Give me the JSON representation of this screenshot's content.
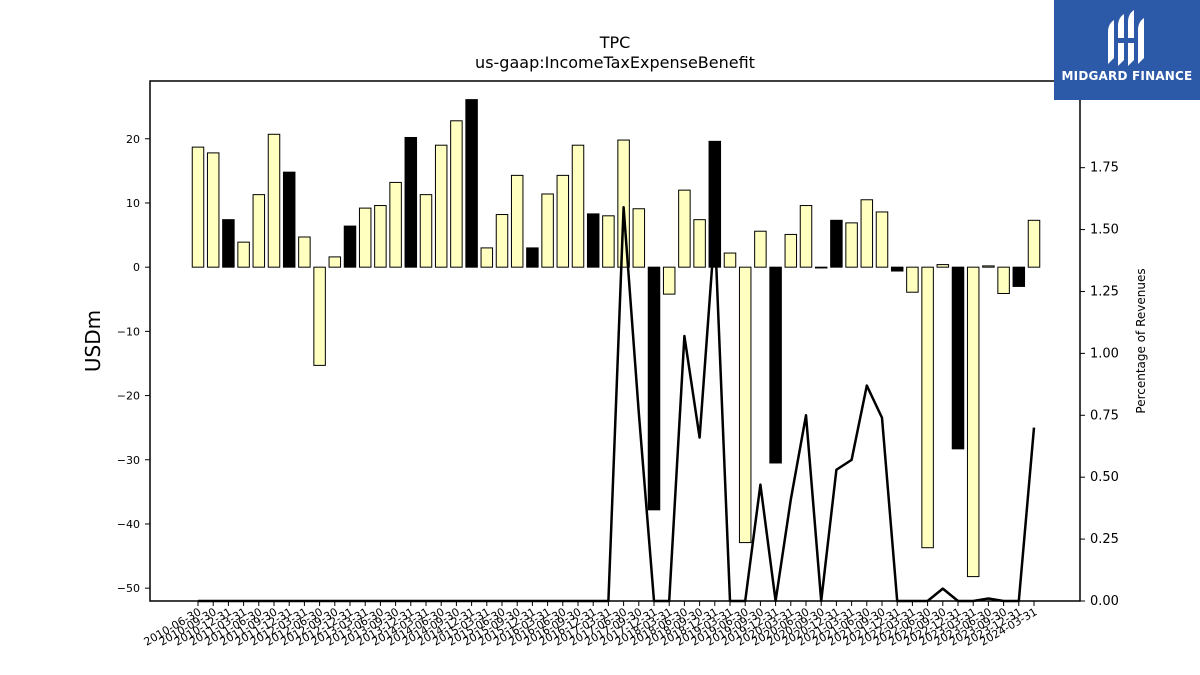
{
  "chart_data": {
    "type": "bar",
    "title": "TPC",
    "subtitle": "us-gaap:IncomeTaxExpenseBenefit",
    "ylabel": "USDm",
    "y2label": "Percentage of Revenues",
    "ylim": [
      -52,
      29
    ],
    "y2lim": [
      0,
      2.1
    ],
    "yticks": [
      -50,
      -40,
      -30,
      -20,
      -10,
      0,
      10,
      20
    ],
    "y2ticks": [
      0.0,
      0.25,
      0.5,
      0.75,
      1.0,
      1.25,
      1.5,
      1.75
    ],
    "tick_labels": [
      "2010-06-30",
      "2010-09-30",
      "2010-12-31",
      "2011-03-31",
      "2011-06-30",
      "2011-09-30",
      "2011-12-31",
      "2012-03-31",
      "2012-06-30",
      "2012-09-30",
      "2012-12-31",
      "2013-03-31",
      "2013-06-30",
      "2013-09-30",
      "2013-12-31",
      "2014-03-31",
      "2014-06-30",
      "2014-09-30",
      "2014-12-31",
      "2015-03-31",
      "2015-06-30",
      "2015-09-30",
      "2015-12-31",
      "2016-03-31",
      "2016-06-30",
      "2016-09-30",
      "2016-12-31",
      "2017-03-31",
      "2017-06-30",
      "2017-09-30",
      "2017-12-31",
      "2018-03-31",
      "2018-06-30",
      "2018-09-30",
      "2018-12-31",
      "2019-03-31",
      "2019-06-30",
      "2019-09-30",
      "2019-12-31",
      "2020-03-31",
      "2020-06-30",
      "2020-09-30",
      "2020-12-31",
      "2021-03-31",
      "2021-06-30",
      "2021-09-30",
      "2021-12-31",
      "2022-03-31",
      "2022-06-30",
      "2022-09-30",
      "2022-12-31",
      "2023-03-31",
      "2023-06-30",
      "2023-09-30",
      "2023-12-31",
      "2024-03-31"
    ],
    "values": [
      18.7,
      17.8,
      7.4,
      3.9,
      11.3,
      20.7,
      14.8,
      4.7,
      -15.3,
      1.6,
      6.4,
      9.2,
      9.6,
      13.2,
      20.2,
      11.3,
      19.0,
      22.8,
      26.1,
      3.0,
      8.2,
      14.3,
      3.0,
      11.4,
      14.3,
      19.0,
      8.3,
      8.0,
      19.8,
      9.1,
      -37.8,
      -4.2,
      12.0,
      7.4,
      19.6,
      2.2,
      -42.9,
      5.6,
      -30.5,
      5.1,
      9.6,
      0.0,
      7.3,
      6.9,
      10.5,
      8.6,
      -0.6,
      -3.9,
      -43.7,
      0.4,
      -28.3,
      -48.2,
      0.2,
      -4.1,
      -3.0,
      7.3
    ],
    "bar_colors": [
      "#ffffc0",
      "#ffffc0",
      "#000000",
      "#ffffc0",
      "#ffffc0",
      "#ffffc0",
      "#000000",
      "#ffffc0",
      "#ffffc0",
      "#ffffc0",
      "#000000",
      "#ffffc0",
      "#ffffc0",
      "#ffffc0",
      "#000000",
      "#ffffc0",
      "#ffffc0",
      "#ffffc0",
      "#000000",
      "#ffffc0",
      "#ffffc0",
      "#ffffc0",
      "#000000",
      "#ffffc0",
      "#ffffc0",
      "#ffffc0",
      "#000000",
      "#ffffc0",
      "#ffffc0",
      "#ffffc0",
      "#000000",
      "#ffffc0",
      "#ffffc0",
      "#ffffc0",
      "#000000",
      "#ffffc0",
      "#ffffc0",
      "#ffffc0",
      "#000000",
      "#ffffc0",
      "#ffffc0",
      "#ffffc0",
      "#000000",
      "#ffffc0",
      "#ffffc0",
      "#ffffc0",
      "#000000",
      "#ffffc0",
      "#ffffc0",
      "#ffffc0",
      "#000000",
      "#ffffc0",
      "#ffffc0",
      "#ffffc0",
      "#000000",
      "#ffffc0"
    ],
    "line_values": [
      0,
      0,
      0,
      0,
      0,
      0,
      0,
      0,
      0,
      0,
      0,
      0,
      0,
      0,
      0,
      0,
      0,
      0,
      0,
      0,
      0,
      0,
      0,
      0,
      0,
      0,
      0,
      0,
      1.59,
      0.76,
      0,
      0,
      1.07,
      0.66,
      1.5,
      0,
      0,
      0.47,
      0,
      0.41,
      0.75,
      0,
      0.53,
      0.57,
      0.87,
      0.74,
      0,
      0,
      0,
      0.05,
      0,
      0,
      0.01,
      0,
      0,
      0.7
    ],
    "grid": false
  },
  "logo": {
    "text": "MIDGARD FINANCE",
    "icon": "midgard-logo-icon"
  }
}
